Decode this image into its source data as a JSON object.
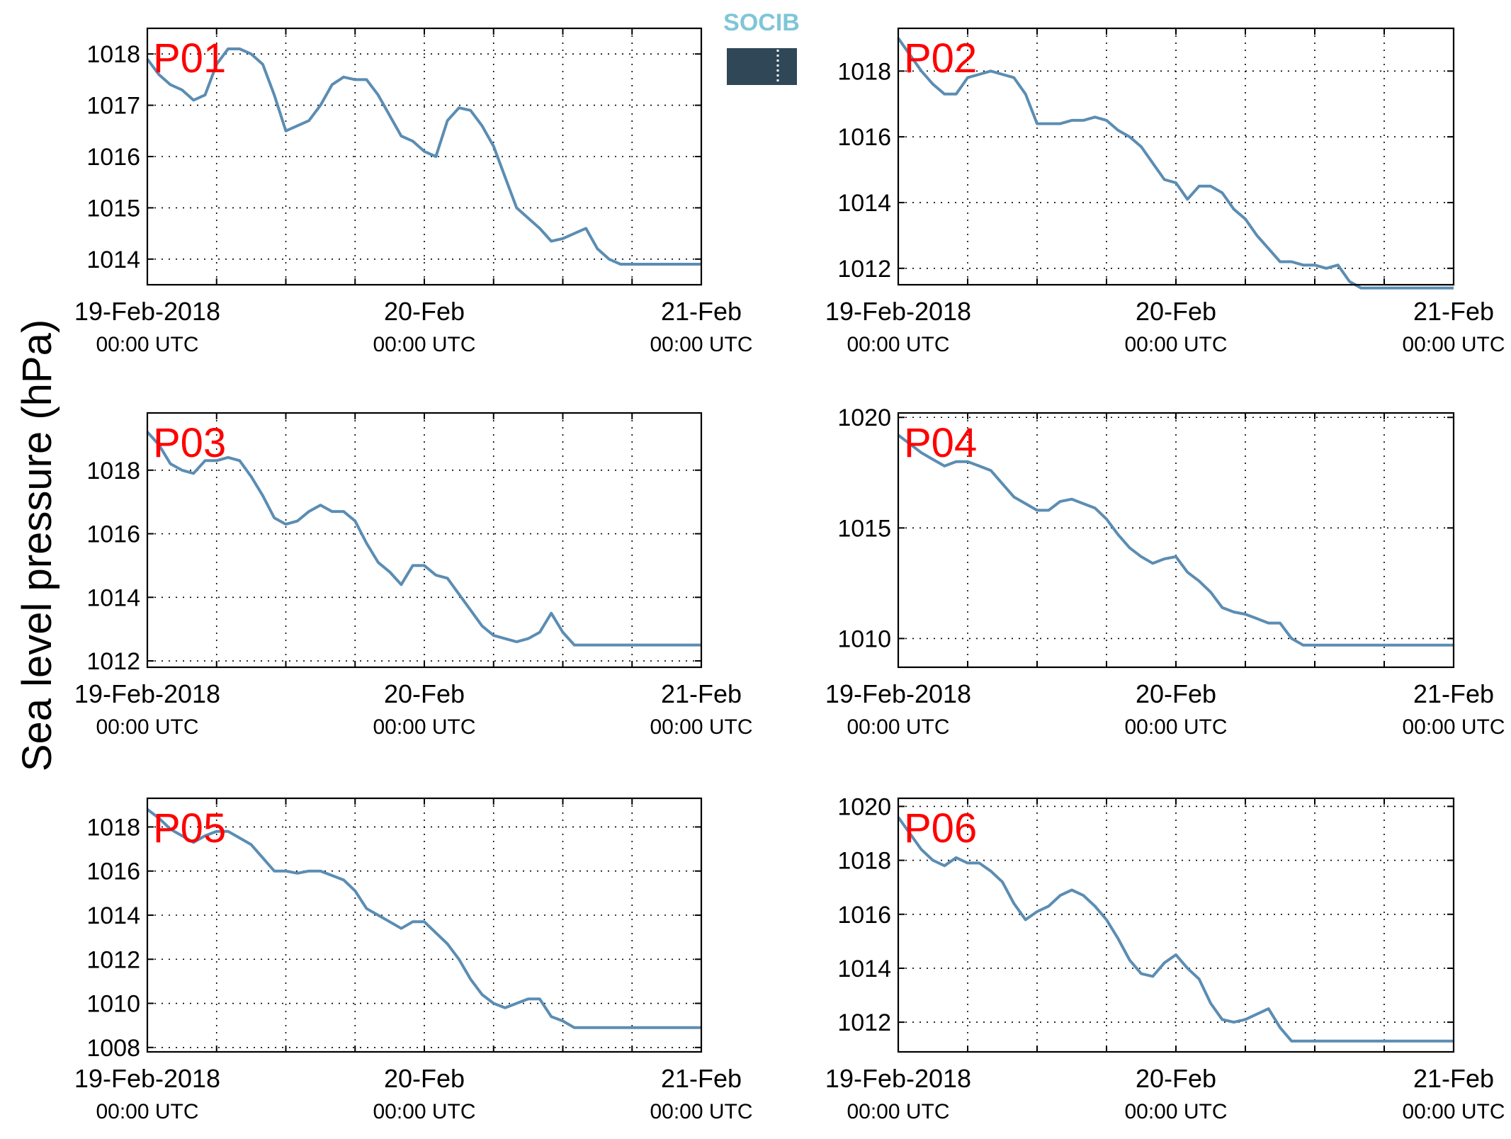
{
  "ylabel": "Sea level pressure (hPa)",
  "logo_text": "SOCIB",
  "colors": {
    "line": "#5b8db3",
    "label": "#ff0000",
    "logo_top": "#7fc6d6",
    "logo_dark": "#2f4756"
  },
  "x_ticks": [
    {
      "date": "19-Feb-2018",
      "time": "00:00 UTC"
    },
    {
      "date": "20-Feb",
      "time": "00:00 UTC"
    },
    {
      "date": "21-Feb",
      "time": "00:00 UTC"
    }
  ],
  "chart_data": [
    {
      "type": "line",
      "label": "P01",
      "ylim": [
        1013.5,
        1018.5
      ],
      "xlim": [
        "2018-02-19T00:00Z",
        "2018-02-21T00:00Z"
      ],
      "grid": true,
      "y_ticks": [
        1014,
        1015,
        1016,
        1017,
        1018
      ],
      "series": [
        {
          "x_hours": [
            0,
            1,
            2,
            3,
            4,
            5,
            6,
            7,
            8,
            9,
            10,
            11,
            12,
            13,
            14,
            15,
            16,
            17,
            18,
            19,
            20,
            21,
            22,
            23,
            24,
            25,
            26,
            27,
            28,
            29,
            30,
            31,
            32,
            33,
            34,
            35,
            36,
            37,
            38,
            39,
            40,
            41,
            42,
            43,
            44,
            45,
            46,
            47,
            48
          ],
          "values": [
            1017.9,
            1017.6,
            1017.4,
            1017.3,
            1017.1,
            1017.2,
            1017.8,
            1018.1,
            1018.1,
            1018.0,
            1017.8,
            1017.2,
            1016.5,
            1016.6,
            1016.7,
            1017.0,
            1017.4,
            1017.55,
            1017.5,
            1017.5,
            1017.2,
            1016.8,
            1016.4,
            1016.3,
            1016.1,
            1016.0,
            1016.7,
            1016.95,
            1016.9,
            1016.6,
            1016.2,
            1015.6,
            1015.0,
            1014.8,
            1014.6,
            1014.35,
            1014.4,
            1014.5,
            1014.6,
            1014.2,
            1014.0,
            1013.9,
            1013.9,
            1013.9,
            1013.9,
            1013.9,
            1013.9,
            1013.9,
            1013.9
          ]
        }
      ]
    },
    {
      "type": "line",
      "label": "P02",
      "ylim": [
        1011.5,
        1019.3
      ],
      "xlim": [
        "2018-02-19T00:00Z",
        "2018-02-21T00:00Z"
      ],
      "grid": true,
      "y_ticks": [
        1012,
        1014,
        1016,
        1018
      ],
      "series": [
        {
          "x_hours": [
            0,
            1,
            2,
            3,
            4,
            5,
            6,
            7,
            8,
            9,
            10,
            11,
            12,
            13,
            14,
            15,
            16,
            17,
            18,
            19,
            20,
            21,
            22,
            23,
            24,
            25,
            26,
            27,
            28,
            29,
            30,
            31,
            32,
            33,
            34,
            35,
            36,
            37,
            38,
            39,
            40,
            41,
            42,
            43,
            44,
            45,
            46,
            47,
            48
          ],
          "values": [
            1019.0,
            1018.5,
            1018.0,
            1017.6,
            1017.3,
            1017.3,
            1017.8,
            1017.9,
            1018.0,
            1017.9,
            1017.8,
            1017.3,
            1016.4,
            1016.4,
            1016.4,
            1016.5,
            1016.5,
            1016.6,
            1016.5,
            1016.2,
            1016.0,
            1015.7,
            1015.2,
            1014.7,
            1014.6,
            1014.1,
            1014.5,
            1014.5,
            1014.3,
            1013.8,
            1013.5,
            1013.0,
            1012.6,
            1012.2,
            1012.2,
            1012.1,
            1012.1,
            1012.0,
            1012.1,
            1011.6,
            1011.4,
            1011.4,
            1011.4,
            1011.4,
            1011.4,
            1011.4,
            1011.4,
            1011.4,
            1011.4
          ]
        }
      ]
    },
    {
      "type": "line",
      "label": "P03",
      "ylim": [
        1011.8,
        1019.8
      ],
      "xlim": [
        "2018-02-19T00:00Z",
        "2018-02-21T00:00Z"
      ],
      "grid": true,
      "y_ticks": [
        1012,
        1014,
        1016,
        1018
      ],
      "series": [
        {
          "x_hours": [
            0,
            1,
            2,
            3,
            4,
            5,
            6,
            7,
            8,
            9,
            10,
            11,
            12,
            13,
            14,
            15,
            16,
            17,
            18,
            19,
            20,
            21,
            22,
            23,
            24,
            25,
            26,
            27,
            28,
            29,
            30,
            31,
            32,
            33,
            34,
            35,
            36,
            37,
            38,
            39,
            40,
            41,
            42,
            43,
            44,
            45,
            46,
            47,
            48
          ],
          "values": [
            1019.2,
            1018.8,
            1018.2,
            1018.0,
            1017.9,
            1018.3,
            1018.3,
            1018.4,
            1018.3,
            1017.8,
            1017.2,
            1016.5,
            1016.3,
            1016.4,
            1016.7,
            1016.9,
            1016.7,
            1016.7,
            1016.4,
            1015.7,
            1015.1,
            1014.8,
            1014.4,
            1015.0,
            1015.0,
            1014.7,
            1014.6,
            1014.1,
            1013.6,
            1013.1,
            1012.8,
            1012.7,
            1012.6,
            1012.7,
            1012.9,
            1013.5,
            1012.9,
            1012.5,
            1012.5,
            1012.5,
            1012.5,
            1012.5,
            1012.5,
            1012.5,
            1012.5,
            1012.5,
            1012.5,
            1012.5,
            1012.5
          ]
        }
      ]
    },
    {
      "type": "line",
      "label": "P04",
      "ylim": [
        1008.7,
        1020.2
      ],
      "xlim": [
        "2018-02-19T00:00Z",
        "2018-02-21T00:00Z"
      ],
      "grid": true,
      "y_ticks": [
        1010,
        1015,
        1020
      ],
      "series": [
        {
          "x_hours": [
            0,
            1,
            2,
            3,
            4,
            5,
            6,
            7,
            8,
            9,
            10,
            11,
            12,
            13,
            14,
            15,
            16,
            17,
            18,
            19,
            20,
            21,
            22,
            23,
            24,
            25,
            26,
            27,
            28,
            29,
            30,
            31,
            32,
            33,
            34,
            35,
            36,
            37,
            38,
            39,
            40,
            41,
            42,
            43,
            44,
            45,
            46,
            47,
            48
          ],
          "values": [
            1019.2,
            1018.8,
            1018.4,
            1018.1,
            1017.8,
            1018.0,
            1018.0,
            1017.8,
            1017.6,
            1017.0,
            1016.4,
            1016.1,
            1015.8,
            1015.8,
            1016.2,
            1016.3,
            1016.1,
            1015.9,
            1015.4,
            1014.7,
            1014.1,
            1013.7,
            1013.4,
            1013.6,
            1013.7,
            1013.0,
            1012.6,
            1012.1,
            1011.4,
            1011.2,
            1011.1,
            1010.9,
            1010.7,
            1010.7,
            1010.0,
            1009.7,
            1009.7,
            1009.7,
            1009.7,
            1009.7,
            1009.7,
            1009.7,
            1009.7,
            1009.7,
            1009.7,
            1009.7,
            1009.7,
            1009.7,
            1009.7
          ]
        }
      ]
    },
    {
      "type": "line",
      "label": "P05",
      "ylim": [
        1007.8,
        1019.3
      ],
      "xlim": [
        "2018-02-19T00:00Z",
        "2018-02-21T00:00Z"
      ],
      "grid": true,
      "y_ticks": [
        1008,
        1010,
        1012,
        1014,
        1016,
        1018
      ],
      "series": [
        {
          "x_hours": [
            0,
            1,
            2,
            3,
            4,
            5,
            6,
            7,
            8,
            9,
            10,
            11,
            12,
            13,
            14,
            15,
            16,
            17,
            18,
            19,
            20,
            21,
            22,
            23,
            24,
            25,
            26,
            27,
            28,
            29,
            30,
            31,
            32,
            33,
            34,
            35,
            36,
            37,
            38,
            39,
            40,
            41,
            42,
            43,
            44,
            45,
            46,
            47,
            48
          ],
          "values": [
            1018.8,
            1018.4,
            1017.9,
            1017.6,
            1017.3,
            1017.6,
            1017.8,
            1017.8,
            1017.5,
            1017.2,
            1016.6,
            1016.0,
            1016.0,
            1015.9,
            1016.0,
            1016.0,
            1015.8,
            1015.6,
            1015.1,
            1014.3,
            1014.0,
            1013.7,
            1013.4,
            1013.7,
            1013.7,
            1013.2,
            1012.7,
            1012.0,
            1011.1,
            1010.4,
            1010.0,
            1009.8,
            1010.0,
            1010.2,
            1010.2,
            1009.4,
            1009.2,
            1008.9,
            1008.9,
            1008.9,
            1008.9,
            1008.9,
            1008.9,
            1008.9,
            1008.9,
            1008.9,
            1008.9,
            1008.9,
            1008.9
          ]
        }
      ]
    },
    {
      "type": "line",
      "label": "P06",
      "ylim": [
        1010.9,
        1020.3
      ],
      "xlim": [
        "2018-02-19T00:00Z",
        "2018-02-21T00:00Z"
      ],
      "grid": true,
      "y_ticks": [
        1012,
        1014,
        1016,
        1018,
        1020
      ],
      "series": [
        {
          "x_hours": [
            0,
            1,
            2,
            3,
            4,
            5,
            6,
            7,
            8,
            9,
            10,
            11,
            12,
            13,
            14,
            15,
            16,
            17,
            18,
            19,
            20,
            21,
            22,
            23,
            24,
            25,
            26,
            27,
            28,
            29,
            30,
            31,
            32,
            33,
            34,
            35,
            36,
            37,
            38,
            39,
            40,
            41,
            42,
            43,
            44,
            45,
            46,
            47,
            48
          ],
          "values": [
            1019.6,
            1019.0,
            1018.4,
            1018.0,
            1017.8,
            1018.1,
            1017.9,
            1017.9,
            1017.6,
            1017.2,
            1016.4,
            1015.8,
            1016.1,
            1016.3,
            1016.7,
            1016.9,
            1016.7,
            1016.3,
            1015.8,
            1015.1,
            1014.3,
            1013.8,
            1013.7,
            1014.2,
            1014.5,
            1014.0,
            1013.6,
            1012.7,
            1012.1,
            1012.0,
            1012.1,
            1012.3,
            1012.5,
            1011.8,
            1011.3,
            1011.3,
            1011.3,
            1011.3,
            1011.3,
            1011.3,
            1011.3,
            1011.3,
            1011.3,
            1011.3,
            1011.3,
            1011.3,
            1011.3,
            1011.3,
            1011.3
          ]
        }
      ]
    }
  ]
}
